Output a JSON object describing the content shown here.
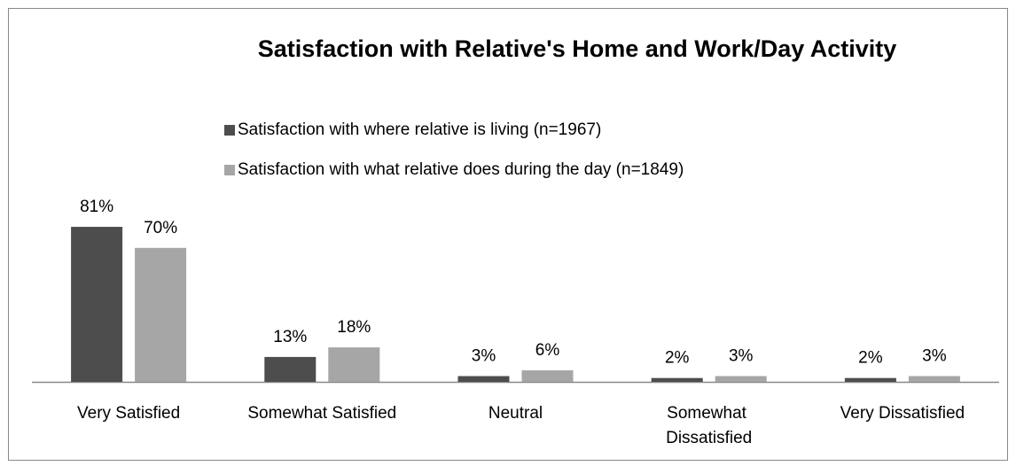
{
  "chart_data": {
    "type": "bar",
    "title": "Satisfaction with Relative's Home and Work/Day Activity",
    "categories": [
      "Very Satisfied",
      "Somewhat Satisfied",
      "Neutral",
      "Somewhat Dissatisfied",
      "Very Dissatisfied"
    ],
    "series": [
      {
        "name": "Satisfaction with where relative is living (n=1967)",
        "color": "#4d4d4d",
        "values": [
          81,
          13,
          3,
          2,
          2
        ],
        "value_labels": [
          "81%",
          "13%",
          "3%",
          "2%",
          "2%"
        ]
      },
      {
        "name": "Satisfaction with what relative does during the day (n=1849)",
        "color": "#a6a6a6",
        "values": [
          70,
          18,
          6,
          3,
          3
        ],
        "value_labels": [
          "70%",
          "18%",
          "6%",
          "3%",
          "3%"
        ]
      }
    ]
  }
}
